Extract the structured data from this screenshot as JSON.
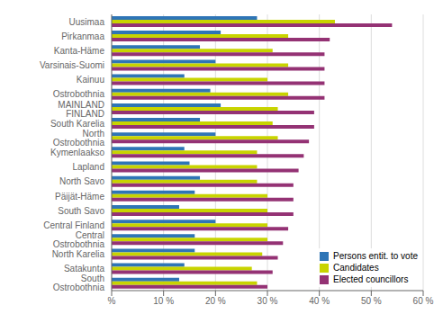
{
  "chart_data": {
    "type": "bar",
    "orientation": "horizontal",
    "categories": [
      "Uusimaa",
      "Pirkanmaa",
      "Kanta-Häme",
      "Varsinais-Suomi",
      "Kainuu",
      "Ostrobothnia",
      "MAINLAND FINLAND",
      "South Karelia",
      "North Ostrobothnia",
      "Kymenlaakso",
      "Lapland",
      "North Savo",
      "Päijät-Häme",
      "South Savo",
      "Central Finland",
      "Central Ostrobothnia",
      "North Karelia",
      "Satakunta",
      "South Ostrobothnia"
    ],
    "series": [
      {
        "name": "Persons entit. to vote",
        "color": "#2E75B6",
        "values": [
          28,
          21,
          17,
          20,
          14,
          19,
          21,
          17,
          20,
          14,
          15,
          17,
          16,
          13,
          20,
          16,
          16,
          14,
          13
        ]
      },
      {
        "name": "Candidates",
        "color": "#C8D400",
        "values": [
          43,
          34,
          31,
          34,
          30,
          34,
          32,
          31,
          32,
          28,
          28,
          28,
          30,
          30,
          30,
          30,
          29,
          27,
          28
        ]
      },
      {
        "name": "Elected councillors",
        "color": "#943274",
        "values": [
          54,
          42,
          41,
          41,
          41,
          41,
          39,
          39,
          38,
          37,
          36,
          35,
          35,
          35,
          34,
          33,
          32,
          31,
          30
        ]
      }
    ],
    "xlim": [
      0,
      60
    ],
    "xticks": [
      {
        "value": 0,
        "label": "%"
      },
      {
        "value": 10,
        "label": "10 %"
      },
      {
        "value": 20,
        "label": "20 %"
      },
      {
        "value": 30,
        "label": "30 %"
      },
      {
        "value": 40,
        "label": "40 %"
      },
      {
        "value": 50,
        "label": "50 %"
      },
      {
        "value": 60,
        "label": "60 %"
      }
    ],
    "grid": true,
    "legend": "lower right"
  }
}
